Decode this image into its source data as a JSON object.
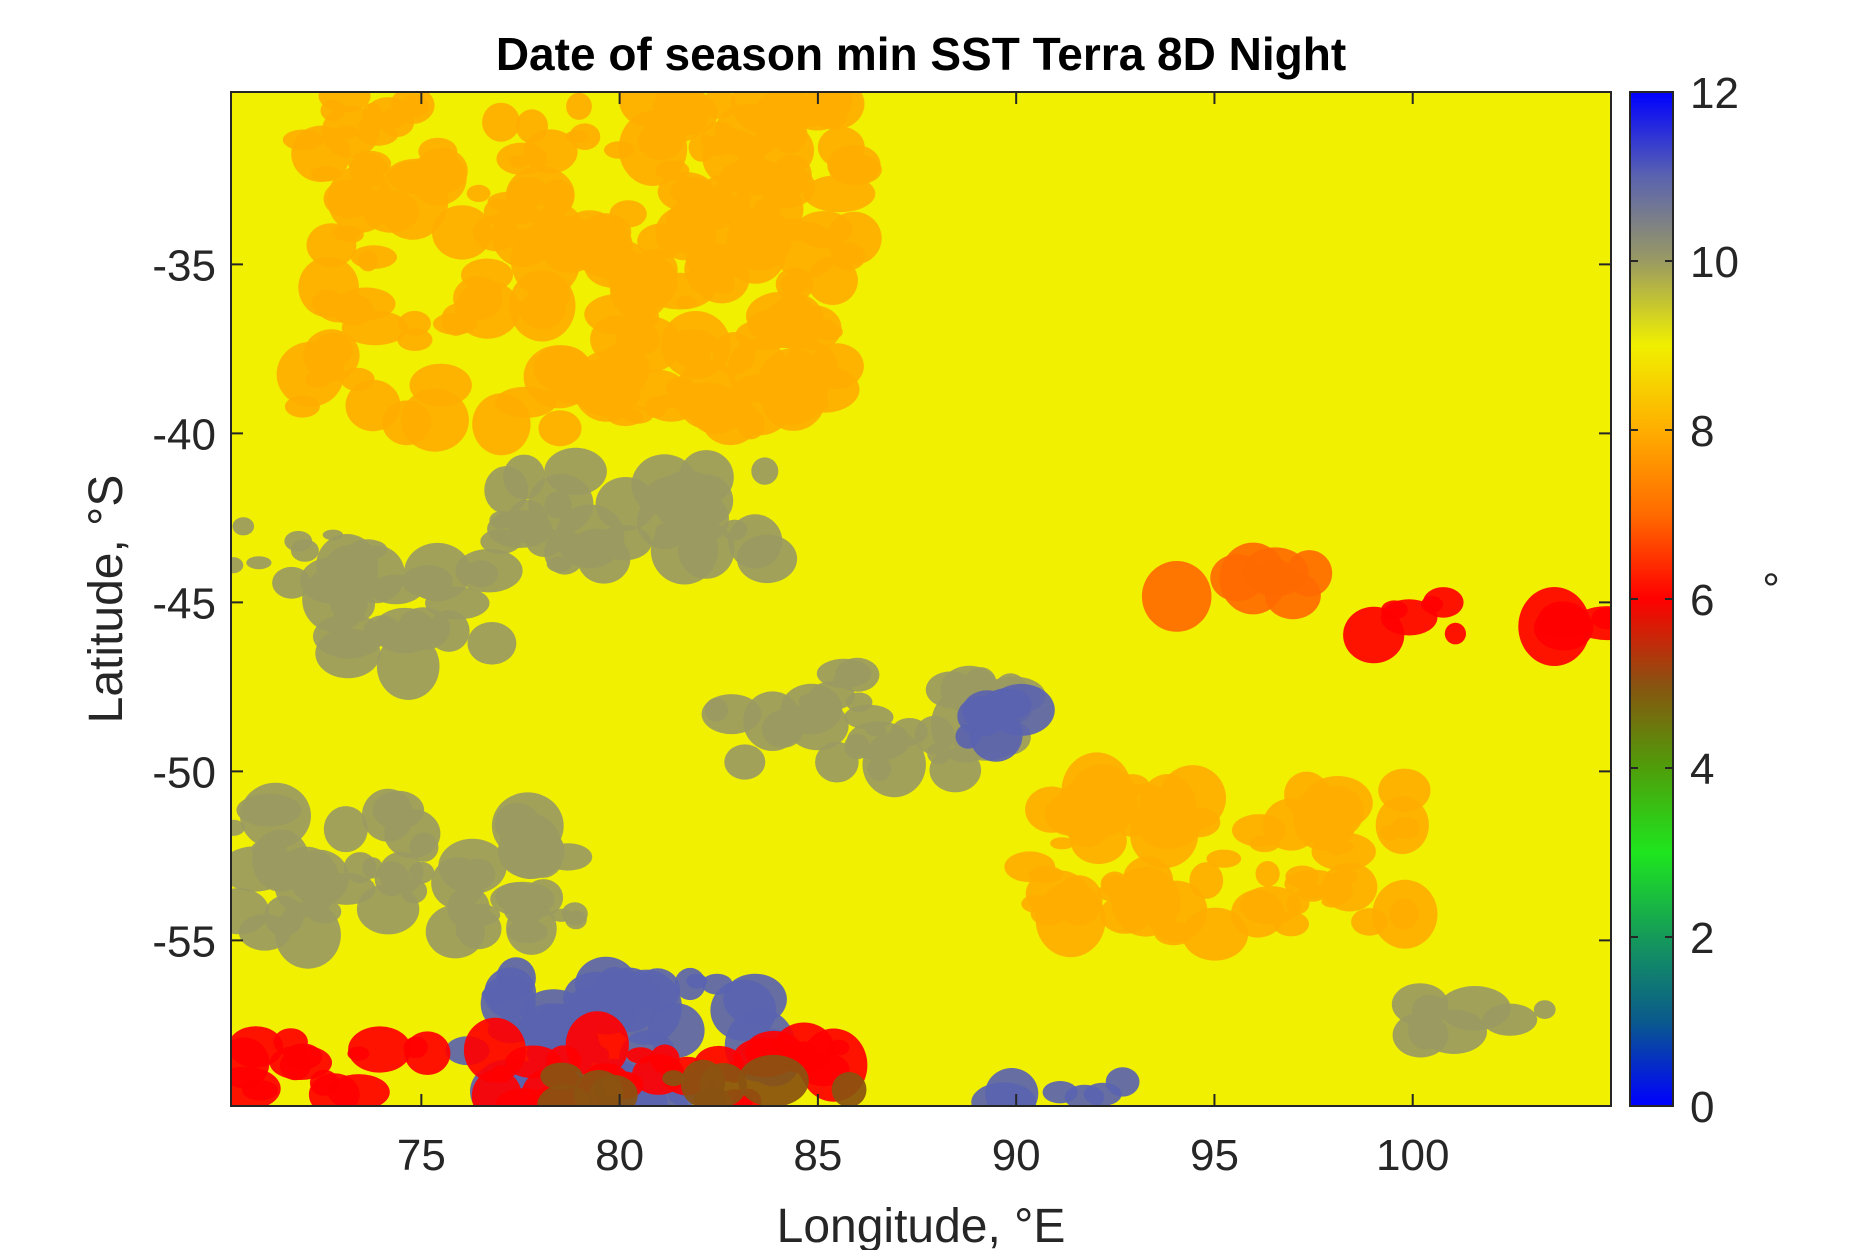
{
  "chart_data": {
    "type": "heatmap",
    "title": "Date of season min SST Terra 8D Night",
    "xlabel": "Longitude, °E",
    "ylabel": "Latitude, °S",
    "xlim": [
      70.2,
      105
    ],
    "ylim": [
      -59.9,
      -29.9
    ],
    "xticks": [
      75,
      80,
      85,
      90,
      95,
      100
    ],
    "xtick_labels": [
      "75",
      "80",
      "85",
      "90",
      "95",
      "100"
    ],
    "yticks": [
      -35,
      -40,
      -45,
      -50,
      -55
    ],
    "ytick_labels": [
      "-35",
      "-40",
      "-45",
      "-50",
      "-55"
    ],
    "colorbar": {
      "label": "°",
      "range": [
        0,
        12
      ],
      "ticks": [
        0,
        2,
        4,
        6,
        8,
        10,
        12
      ],
      "tick_labels": [
        "0",
        "2",
        "4",
        "6",
        "8",
        "10",
        "12"
      ],
      "colormap": [
        {
          "value": 0,
          "color": "#0000ff"
        },
        {
          "value": 1,
          "color": "#0a5a8c"
        },
        {
          "value": 2,
          "color": "#159a5a"
        },
        {
          "value": 3,
          "color": "#1ee61e"
        },
        {
          "value": 4,
          "color": "#4f9e0a"
        },
        {
          "value": 5,
          "color": "#8a5210"
        },
        {
          "value": 6,
          "color": "#ff0000"
        },
        {
          "value": 7,
          "color": "#ff6a00"
        },
        {
          "value": 8,
          "color": "#ffae00"
        },
        {
          "value": 9,
          "color": "#f0f000"
        },
        {
          "value": 10,
          "color": "#9a9a62"
        },
        {
          "value": 11,
          "color": "#5a63b0"
        },
        {
          "value": 12,
          "color": "#0000ff"
        }
      ]
    },
    "grid": false,
    "dominant_value": 9,
    "regions": [
      {
        "lon": [
          70.2,
          105
        ],
        "lat": [
          -29.9,
          -45
        ],
        "value": 9,
        "note": "mostly yellow"
      },
      {
        "lon": [
          72,
          86
        ],
        "lat": [
          -30,
          -40
        ],
        "value": 8
      },
      {
        "lon": [
          70.2,
          74
        ],
        "lat": [
          -42.5,
          -45
        ],
        "value": 10
      },
      {
        "lon": [
          73,
          77
        ],
        "lat": [
          -44,
          -47
        ],
        "value": 10
      },
      {
        "lon": [
          77,
          84
        ],
        "lat": [
          -41,
          -44
        ],
        "value": 10
      },
      {
        "lon": [
          82,
          90
        ],
        "lat": [
          -47,
          -50
        ],
        "value": 10
      },
      {
        "lon": [
          88.5,
          90.5
        ],
        "lat": [
          -48,
          -49
        ],
        "value": 11
      },
      {
        "lon": [
          93,
          98
        ],
        "lat": [
          -44,
          -45
        ],
        "value": 7
      },
      {
        "lon": [
          99,
          102
        ],
        "lat": [
          -45,
          -46
        ],
        "value": 6
      },
      {
        "lon": [
          103.5,
          105
        ],
        "lat": [
          -45.2,
          -45.9
        ],
        "value": 6
      },
      {
        "lon": [
          90,
          100
        ],
        "lat": [
          -50,
          -55
        ],
        "value": 8
      },
      {
        "lon": [
          70.2,
          79
        ],
        "lat": [
          -51,
          -55
        ],
        "value": 10
      },
      {
        "lon": [
          76,
          84
        ],
        "lat": [
          -56,
          -59.9
        ],
        "value": 11
      },
      {
        "lon": [
          70.2,
          86
        ],
        "lat": [
          -58,
          -59.9
        ],
        "value": 6
      },
      {
        "lon": [
          78,
          86
        ],
        "lat": [
          -59,
          -59.9
        ],
        "value": 5
      },
      {
        "lon": [
          100,
          104
        ],
        "lat": [
          -56.5,
          -58
        ],
        "value": 10
      },
      {
        "lon": [
          89,
          93
        ],
        "lat": [
          -59,
          -59.9
        ],
        "value": 11
      }
    ]
  }
}
